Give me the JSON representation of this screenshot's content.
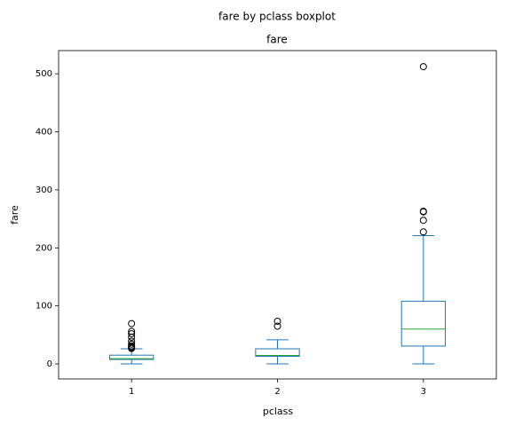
{
  "chart_data": {
    "type": "boxplot",
    "suptitle": "fare by pclass boxplot",
    "title": "fare",
    "x_label": "pclass",
    "y_label": "fare",
    "categories": [
      "1",
      "2",
      "3"
    ],
    "boxes": [
      {
        "whislo": 0,
        "q1": 7.6,
        "med": 9,
        "q3": 15,
        "whishi": 26,
        "fliers": [
          26.5,
          27.7,
          29,
          31,
          34,
          39,
          46,
          52,
          56,
          69.5
        ]
      },
      {
        "whislo": 0,
        "q1": 13,
        "med": 14.5,
        "q3": 26,
        "whishi": 41.5,
        "fliers": [
          65,
          73.5
        ]
      },
      {
        "whislo": 0,
        "q1": 30.7,
        "med": 60,
        "q3": 108,
        "whishi": 221,
        "fliers": [
          227.5,
          247.5,
          262,
          263,
          512.3
        ]
      }
    ],
    "box_color": "#1f77b4",
    "median_color": "#2ca02c",
    "ylim": [
      -26,
      540
    ],
    "yticks": [
      0,
      100,
      200,
      300,
      400,
      500
    ],
    "grid": false
  }
}
